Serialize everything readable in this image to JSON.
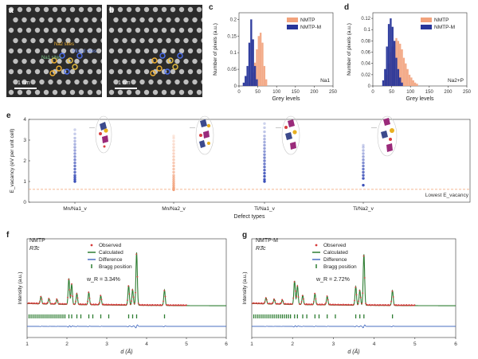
{
  "colors": {
    "nmtp": "#f2a27c",
    "nmtpm": "#27359a",
    "observed": "#d63a3a",
    "calculated": "#2e7d32",
    "difference": "#4a6fc2",
    "bragg": "#2e7d32",
    "lowest_line": "#f0a070"
  },
  "panel_a": {
    "letter": "a",
    "sites": [
      "Na2 sites",
      "Mixed sites"
    ],
    "extra_label": "Na1 sites",
    "scale": "1 nm"
  },
  "panel_b": {
    "letter": "b",
    "scale": "1 nm"
  },
  "panel_c": {
    "letter": "c"
  },
  "panel_d": {
    "letter": "d"
  },
  "panel_e": {
    "letter": "e",
    "ylabel": "E_vacancy (eV per unit cell)",
    "xlabel": "Defect types",
    "categories": [
      "Mn/Na1_v",
      "Mn/Na2_v",
      "Ti/Na1_v",
      "Ti/Na2_v"
    ],
    "lowest_label": "Lowest E_vacancy"
  },
  "panel_f": {
    "letter": "f",
    "material": "NMTP",
    "space_group": "R3̄c",
    "rwp": "w_R = 3.34%"
  },
  "panel_g": {
    "letter": "g",
    "material": "NMTP-M",
    "space_group": "R3̄c",
    "rwp": "w_R = 2.72%"
  },
  "legend_xrd": [
    "Observed",
    "Calculated",
    "Difference",
    "Bragg position"
  ],
  "chart_data": [
    {
      "type": "bar",
      "panel": "c",
      "annotation": "Na1",
      "xlabel": "Grey levels",
      "ylabel": "Number of pixels (a.u.)",
      "xlim": [
        0,
        250
      ],
      "ylim": [
        0,
        0.22
      ],
      "xticks": [
        0,
        50,
        100,
        150,
        200,
        250
      ],
      "yticks": [
        0,
        0.05,
        0.1,
        0.15,
        0.2
      ],
      "series": [
        {
          "name": "NMTP",
          "bins": [
            [
              25,
              0.01
            ],
            [
              30,
              0.02
            ],
            [
              35,
              0.04
            ],
            [
              40,
              0.07
            ],
            [
              45,
              0.11
            ],
            [
              50,
              0.15
            ],
            [
              55,
              0.16
            ],
            [
              60,
              0.13
            ],
            [
              65,
              0.06
            ],
            [
              70,
              0.02
            ]
          ]
        },
        {
          "name": "NMTP-M",
          "bins": [
            [
              10,
              0.01
            ],
            [
              15,
              0.03
            ],
            [
              20,
              0.06
            ],
            [
              25,
              0.13
            ],
            [
              30,
              0.2
            ],
            [
              35,
              0.14
            ],
            [
              40,
              0.06
            ],
            [
              45,
              0.02
            ]
          ]
        }
      ]
    },
    {
      "type": "bar",
      "panel": "d",
      "annotation": "Na2+P",
      "xlabel": "Grey levels",
      "ylabel": "Number of pixels (a.u.)",
      "xlim": [
        0,
        250
      ],
      "ylim": [
        0,
        0.13
      ],
      "xticks": [
        0,
        50,
        100,
        150,
        200,
        250
      ],
      "yticks": [
        0,
        0.02,
        0.04,
        0.06,
        0.08,
        0.1,
        0.12
      ],
      "series": [
        {
          "name": "NMTP",
          "bins": [
            [
              30,
              0.01
            ],
            [
              35,
              0.02
            ],
            [
              40,
              0.04
            ],
            [
              45,
              0.06
            ],
            [
              50,
              0.07
            ],
            [
              55,
              0.08
            ],
            [
              60,
              0.085
            ],
            [
              65,
              0.08
            ],
            [
              70,
              0.075
            ],
            [
              75,
              0.065
            ],
            [
              80,
              0.05
            ],
            [
              85,
              0.04
            ],
            [
              90,
              0.03
            ],
            [
              95,
              0.02
            ],
            [
              100,
              0.015
            ],
            [
              105,
              0.01
            ],
            [
              110,
              0.006
            ],
            [
              115,
              0.004
            ]
          ]
        },
        {
          "name": "NMTP-M",
          "bins": [
            [
              25,
              0.01
            ],
            [
              30,
              0.03
            ],
            [
              35,
              0.07
            ],
            [
              40,
              0.11
            ],
            [
              45,
              0.12
            ],
            [
              50,
              0.105
            ],
            [
              55,
              0.08
            ],
            [
              60,
              0.05
            ],
            [
              65,
              0.03
            ],
            [
              70,
              0.015
            ],
            [
              75,
              0.006
            ]
          ]
        }
      ]
    },
    {
      "type": "scatter",
      "panel": "e",
      "ylim": [
        0,
        4
      ],
      "yticks": [
        0,
        1,
        2,
        3,
        4
      ],
      "lowest_value": 0.62,
      "series": [
        {
          "category": "Mn/Na1_v",
          "color": "#3b4fb8",
          "values": [
            1.0,
            1.1,
            1.2,
            1.3,
            1.45,
            1.6,
            1.75,
            1.9,
            2.05,
            2.2,
            2.35,
            2.5,
            2.65,
            2.8,
            2.95,
            3.1,
            3.3,
            3.5
          ]
        },
        {
          "category": "Mn/Na2_v",
          "color": "#f2a27c",
          "values": [
            0.6,
            0.65,
            0.7,
            0.8,
            0.9,
            1.0,
            1.1,
            1.2,
            1.3,
            1.45,
            1.6,
            1.75,
            1.9,
            2.05,
            2.2,
            2.35,
            2.5,
            2.65,
            2.8,
            2.95,
            3.1,
            3.2
          ]
        },
        {
          "category": "Ti/Na1_v",
          "color": "#3b4fb8",
          "values": [
            1.0,
            1.1,
            1.25,
            1.4,
            1.55,
            1.7,
            1.85,
            2.0,
            2.15,
            2.3,
            2.45,
            2.6,
            2.75,
            2.9,
            3.05,
            3.2,
            3.4,
            3.6,
            3.8
          ]
        },
        {
          "category": "Ti/Na2_v",
          "color": "#3b4fb8",
          "values": [
            0.82,
            1.15,
            1.3,
            1.45,
            1.6,
            1.75,
            1.9,
            2.05,
            2.2,
            2.35,
            2.5,
            2.65,
            2.75
          ]
        }
      ]
    },
    {
      "type": "line",
      "panel": "f",
      "xlabel": "d (Å)",
      "ylabel": "Intensity (a.u.)",
      "xlim": [
        1,
        6
      ],
      "xticks": [
        1,
        2,
        3,
        4,
        5,
        6
      ],
      "peaks": [
        [
          1.35,
          0.12
        ],
        [
          1.55,
          0.09
        ],
        [
          1.75,
          0.08
        ],
        [
          2.05,
          0.42
        ],
        [
          2.12,
          0.33
        ],
        [
          2.25,
          0.18
        ],
        [
          2.55,
          0.2
        ],
        [
          2.85,
          0.15
        ],
        [
          3.55,
          0.32
        ],
        [
          3.65,
          0.25
        ],
        [
          3.75,
          0.85
        ],
        [
          4.45,
          0.25
        ]
      ],
      "bragg": [
        1.05,
        1.1,
        1.15,
        1.2,
        1.25,
        1.3,
        1.35,
        1.4,
        1.45,
        1.5,
        1.55,
        1.6,
        1.65,
        1.7,
        1.75,
        1.8,
        1.85,
        1.9,
        1.95,
        2.05,
        2.12,
        2.25,
        2.35,
        2.55,
        2.65,
        2.85,
        3.05,
        3.55,
        3.65,
        3.75,
        4.45
      ]
    },
    {
      "type": "line",
      "panel": "g",
      "xlabel": "d (Å)",
      "ylabel": "Intensity (a.u.)",
      "xlim": [
        1,
        6
      ],
      "xticks": [
        1,
        2,
        3,
        4,
        5,
        6
      ],
      "peaks": [
        [
          1.35,
          0.1
        ],
        [
          1.55,
          0.08
        ],
        [
          1.75,
          0.07
        ],
        [
          2.05,
          0.38
        ],
        [
          2.12,
          0.3
        ],
        [
          2.25,
          0.15
        ],
        [
          2.55,
          0.18
        ],
        [
          2.85,
          0.14
        ],
        [
          3.55,
          0.3
        ],
        [
          3.65,
          0.24
        ],
        [
          3.75,
          0.82
        ],
        [
          4.45,
          0.24
        ]
      ],
      "bragg": [
        1.05,
        1.1,
        1.15,
        1.2,
        1.25,
        1.3,
        1.35,
        1.4,
        1.45,
        1.5,
        1.55,
        1.6,
        1.65,
        1.7,
        1.75,
        1.8,
        1.85,
        1.9,
        1.95,
        2.05,
        2.12,
        2.25,
        2.35,
        2.55,
        2.65,
        2.85,
        3.05,
        3.55,
        3.65,
        3.75,
        4.45
      ]
    }
  ]
}
